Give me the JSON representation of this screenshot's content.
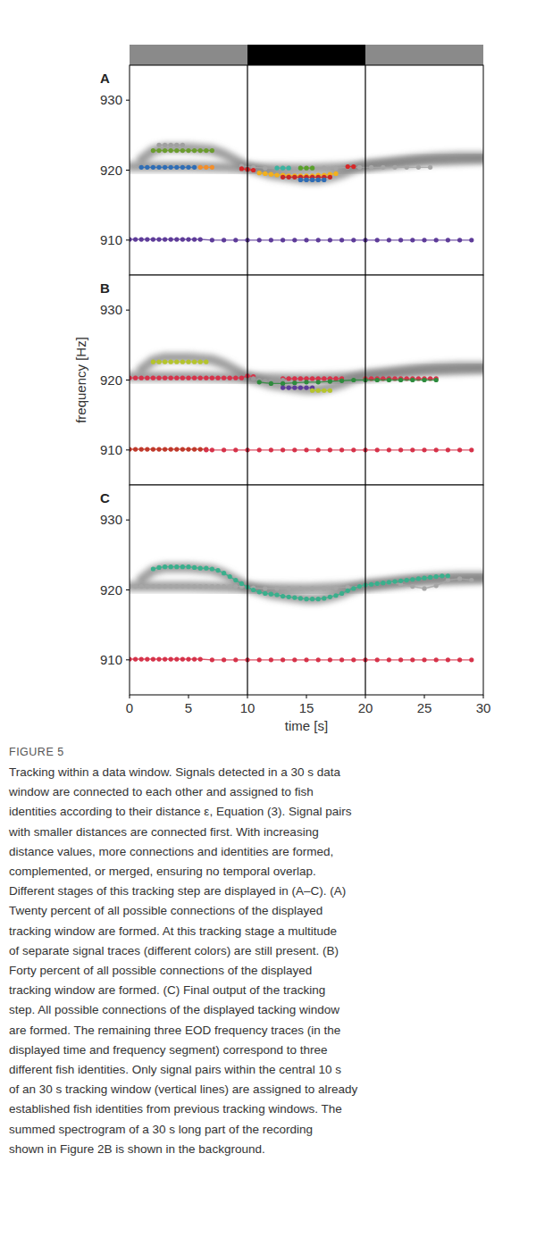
{
  "chart_data": [
    {
      "type": "line",
      "title": "A",
      "marker": "circle",
      "tick_labels": "y",
      "xlim": [
        0,
        30
      ],
      "ylim": [
        905,
        935
      ],
      "yticks": [
        910,
        920,
        930
      ],
      "vlines": [
        10,
        20
      ],
      "series": [
        {
          "color": "#5e3c99",
          "x": [
            0,
            0.5,
            1,
            1.5,
            2,
            2.5,
            3,
            3.5,
            4,
            4.5,
            5,
            5.5,
            6,
            7,
            8,
            9,
            10,
            11,
            12,
            13,
            14,
            15,
            16,
            17,
            18,
            19,
            20,
            21,
            22,
            23,
            24,
            25,
            26,
            27,
            28,
            29
          ],
          "values": [
            910.1,
            910.1,
            910.1,
            910.1,
            910.1,
            910.1,
            910.1,
            910.1,
            910.1,
            910.1,
            910.1,
            910.1,
            910.1,
            910,
            910,
            910,
            910,
            910,
            910,
            910,
            910,
            910,
            910,
            910,
            910,
            910,
            910,
            910,
            910,
            910,
            910,
            910,
            910,
            910,
            910,
            910
          ]
        },
        {
          "color": "#2f6db5",
          "x": [
            1,
            1.5,
            2,
            2.5,
            3,
            3.5,
            4,
            4.5,
            5,
            5.5
          ],
          "values": [
            920.4,
            920.4,
            920.4,
            920.4,
            920.4,
            920.4,
            920.4,
            920.4,
            920.4,
            920.4
          ]
        },
        {
          "color": "#f28e2b",
          "x": [
            6,
            6.5,
            7
          ],
          "values": [
            920.4,
            920.4,
            920.4
          ]
        },
        {
          "color": "#6b9c2f",
          "x": [
            2,
            2.5,
            3,
            3.5,
            4,
            4.5,
            5,
            5.5,
            6,
            6.5,
            7
          ],
          "values": [
            922.8,
            922.8,
            922.8,
            922.8,
            922.8,
            922.8,
            922.8,
            922.8,
            922.8,
            922.8,
            922.8
          ]
        },
        {
          "color": "#a0a0a0",
          "x": [
            2.5,
            3,
            3.5,
            4,
            4.5
          ],
          "values": [
            923.6,
            923.6,
            923.6,
            923.6,
            923.6
          ]
        },
        {
          "color": "#a6a6a6",
          "x": [
            9.5,
            10.5,
            11.5,
            12.5,
            13.5,
            14.5,
            15.5,
            16.5,
            17.5,
            18.5,
            19.5,
            20.5,
            21.5,
            22.5,
            23.5,
            24.5,
            25.5
          ],
          "values": [
            920.6,
            920.4,
            920.3,
            920.3,
            920.3,
            920.3,
            920.3,
            920.3,
            920.3,
            920.4,
            920.4,
            920.4,
            920.4,
            920.4,
            920.4,
            920.4,
            920.4
          ]
        },
        {
          "color": "#d62728",
          "x": [
            9.5,
            10,
            10.5
          ],
          "values": [
            920.2,
            920.1,
            920
          ]
        },
        {
          "color": "#f2b01e",
          "x": [
            11,
            11.5,
            12,
            12.5,
            13,
            13.5,
            14,
            14.5,
            15,
            15.5,
            16,
            16.5,
            17,
            17.5
          ],
          "values": [
            919.6,
            919.5,
            919.4,
            919.3,
            919.3,
            919.2,
            919.2,
            919.2,
            919.2,
            919.2,
            919.3,
            919.3,
            919.4,
            919.5
          ]
        },
        {
          "color": "#c62828",
          "x": [
            13,
            13.5,
            14,
            14.5,
            15,
            15.5,
            16,
            16.5,
            17
          ],
          "values": [
            919,
            919,
            919,
            919,
            919,
            919,
            919,
            919,
            919
          ]
        },
        {
          "color": "#3cb3a0",
          "x": [
            12.5,
            13,
            13.5
          ],
          "values": [
            920.3,
            920.3,
            920.3
          ]
        },
        {
          "color": "#5aa02c",
          "x": [
            14.5,
            15,
            15.5
          ],
          "values": [
            920.3,
            920.3,
            920.3
          ]
        },
        {
          "color": "#2f6db5",
          "x": [
            14.5,
            15,
            15.5,
            16,
            16.5
          ],
          "values": [
            918.6,
            918.6,
            918.6,
            918.6,
            918.6
          ]
        },
        {
          "color": "#d62728",
          "x": [
            18.5,
            19
          ],
          "values": [
            920.5,
            920.5
          ]
        }
      ]
    },
    {
      "type": "line",
      "title": "B",
      "marker": "circle",
      "tick_labels": "y",
      "ylabel": "frequency [Hz]",
      "xlim": [
        0,
        30
      ],
      "ylim": [
        905,
        935
      ],
      "yticks": [
        910,
        920,
        930
      ],
      "vlines": [
        10,
        20
      ],
      "series": [
        {
          "color": "#b5c42c",
          "x": [
            2,
            2.5,
            3,
            3.5,
            4,
            4.5,
            5,
            5.5,
            6,
            6.5
          ],
          "values": [
            922.6,
            922.6,
            922.6,
            922.6,
            922.6,
            922.6,
            922.6,
            922.6,
            922.6,
            922.6
          ]
        },
        {
          "color": "#d6334a",
          "x": [
            0,
            0.5,
            1,
            1.5,
            2,
            2.5,
            3,
            3.5,
            4,
            4.5,
            5,
            5.5,
            6,
            6.5,
            7,
            7.5,
            8,
            8.5,
            9,
            9.5,
            10,
            10.5,
            11.5,
            13,
            13.5,
            14,
            14.5,
            15,
            15.5,
            16,
            16.5,
            17,
            17.5,
            18,
            19,
            20,
            20.5,
            21,
            21.5,
            22,
            22.5,
            23,
            23.5,
            24,
            24.5,
            25,
            25.5,
            26
          ],
          "values": [
            920.3,
            920.3,
            920.3,
            920.3,
            920.3,
            920.3,
            920.3,
            920.3,
            920.3,
            920.3,
            920.3,
            920.3,
            920.3,
            920.3,
            920.3,
            920.3,
            920.3,
            920.3,
            920.3,
            920.3,
            920.6,
            920.5,
            null,
            920.2,
            920.2,
            920.2,
            920.2,
            920.2,
            920.2,
            920.2,
            920.2,
            920.2,
            920.2,
            920.2,
            null,
            920.2,
            920.2,
            920.2,
            920.2,
            920.2,
            920.2,
            920.2,
            920.2,
            920.2,
            920.2,
            920.2,
            920.2,
            920.2
          ]
        },
        {
          "color": "#9a9a9a",
          "x": [
            10.5,
            11,
            11.5,
            12,
            12.5,
            13
          ],
          "values": [
            920.2,
            920,
            919.9,
            919.9,
            919.9,
            920
          ]
        },
        {
          "color": "#2e8b3d",
          "x": [
            11,
            12,
            13,
            14,
            15,
            16,
            17,
            18,
            19,
            20,
            21,
            22,
            23,
            24,
            25,
            26
          ],
          "values": [
            919.7,
            919.5,
            919.5,
            919.6,
            919.7,
            919.7,
            919.8,
            919.9,
            920,
            920,
            920,
            920,
            920,
            920,
            920,
            920
          ]
        },
        {
          "color": "#5e3c99",
          "x": [
            13,
            13.5,
            14,
            14.5,
            15,
            15.5
          ],
          "values": [
            918.9,
            918.9,
            918.9,
            918.9,
            918.9,
            918.9
          ]
        },
        {
          "color": "#b5c42c",
          "x": [
            15.5,
            16,
            16.5,
            17
          ],
          "values": [
            918.5,
            918.5,
            918.5,
            918.5
          ]
        },
        {
          "color": "#c0392b",
          "x": [
            0,
            0.5,
            1,
            1.5,
            2,
            2.5,
            3,
            3.5,
            4,
            4.5,
            5,
            5.5,
            6,
            6.5
          ],
          "values": [
            910.1,
            910.1,
            910.1,
            910.1,
            910.1,
            910.1,
            910.1,
            910.1,
            910.1,
            910.1,
            910.1,
            910.1,
            910.1,
            910.1
          ]
        },
        {
          "color": "#d6334a",
          "x": [
            6.5,
            7,
            8,
            9,
            10,
            11,
            12,
            13,
            14,
            15,
            16,
            17,
            18,
            19,
            20,
            21,
            22,
            23,
            24,
            25,
            26,
            27,
            28,
            29
          ],
          "values": [
            910,
            910,
            910,
            910,
            910,
            910,
            910,
            910,
            910,
            910,
            910,
            910,
            910,
            910,
            910,
            910,
            910,
            910,
            910,
            910,
            910,
            910,
            910,
            910
          ]
        }
      ]
    },
    {
      "type": "line",
      "title": "C",
      "marker": "circle",
      "xlabel": "time [s]",
      "xlim": [
        0,
        30
      ],
      "ylim": [
        905,
        935
      ],
      "xticks": [
        0,
        5,
        10,
        15,
        20,
        25,
        30
      ],
      "yticks": [
        910,
        920,
        930
      ],
      "vlines": [
        10,
        20
      ],
      "series": [
        {
          "color": "#d6334a",
          "x": [
            0,
            0.5,
            1,
            1.5,
            2,
            2.5,
            3,
            3.5,
            4,
            4.5,
            5,
            5.5,
            6,
            7,
            8,
            9,
            10,
            11,
            12,
            13,
            14,
            15,
            16,
            17,
            18,
            19,
            20,
            21,
            22,
            23,
            24,
            25,
            26,
            27,
            28,
            29
          ],
          "values": [
            910.1,
            910.1,
            910.1,
            910.1,
            910.1,
            910.1,
            910.1,
            910.1,
            910.1,
            910.1,
            910.1,
            910.1,
            910.1,
            910,
            910,
            910,
            910,
            910,
            910,
            910,
            910,
            910,
            910,
            910,
            910,
            910,
            910,
            910,
            910,
            910,
            910,
            910,
            910,
            910,
            910,
            910
          ]
        },
        {
          "color": "#a6a6a6",
          "x": [
            0,
            0.5,
            1,
            1.5,
            2,
            2.5,
            3,
            3.5,
            4,
            4.5,
            5,
            5.5,
            6,
            6.5,
            7,
            7.5,
            8,
            8.5,
            9,
            9.5,
            10.5,
            11.5,
            12.5,
            13.5,
            14.5,
            15.5,
            16.5,
            17.5,
            18.5,
            19.5,
            21,
            22,
            23,
            24,
            25,
            26,
            27,
            28,
            29
          ],
          "values": [
            920.5,
            920.5,
            920.5,
            920.5,
            920.5,
            920.5,
            920.5,
            920.5,
            920.5,
            920.5,
            920.5,
            920.5,
            920.5,
            920.5,
            920.5,
            920.5,
            920.5,
            920.5,
            920.5,
            920.5,
            920.3,
            920.2,
            920.2,
            920.2,
            920.2,
            920.2,
            920.2,
            920.3,
            920.4,
            920.5,
            920.9,
            921.1,
            920.8,
            920.5,
            920.2,
            920.6,
            921.4,
            921.6,
            921.4
          ]
        },
        {
          "color": "#3aaf8c",
          "x": [
            2,
            2.5,
            3,
            3.5,
            4,
            4.5,
            5,
            5.5,
            6,
            6.5,
            7,
            7.5,
            8,
            8.5,
            9,
            9.5,
            10,
            10.5,
            11,
            11.5,
            12,
            12.5,
            13,
            13.5,
            14,
            14.5,
            15,
            15.5,
            16,
            16.5,
            17,
            17.5,
            18,
            18.5,
            19,
            19.5,
            20,
            20.5,
            21,
            21.5,
            22,
            22.5,
            23,
            23.5,
            24,
            24.5,
            25,
            25.5,
            26,
            26.5,
            27
          ],
          "values": [
            923,
            923.2,
            923.3,
            923.3,
            923.3,
            923.3,
            923.3,
            923.2,
            923.1,
            923.1,
            923,
            922.8,
            922.4,
            921.9,
            921.4,
            920.9,
            920.4,
            920,
            919.7,
            919.5,
            919.4,
            919.3,
            919.1,
            919,
            918.9,
            918.8,
            918.7,
            918.7,
            918.7,
            918.8,
            919,
            919.2,
            919.5,
            919.9,
            920.2,
            920.5,
            920.7,
            920.8,
            920.9,
            921,
            921.1,
            921.2,
            921.3,
            921.4,
            921.5,
            921.6,
            921.7,
            921.8,
            921.9,
            922,
            922
          ]
        }
      ]
    }
  ],
  "spectrogram": [
    {
      "x": [
        0,
        5,
        10,
        15,
        20,
        25,
        30
      ],
      "values": [
        920.5,
        920.5,
        920.3,
        920.2,
        920.5,
        921.3,
        921.6
      ]
    },
    {
      "x": [
        1,
        2,
        3,
        5,
        7,
        8,
        9,
        10,
        12,
        14,
        15,
        16,
        17,
        18,
        19,
        20,
        22,
        24,
        26,
        28,
        30
      ],
      "values": [
        921.5,
        922.8,
        923.2,
        923.2,
        922.9,
        922.3,
        921.4,
        920.4,
        919.4,
        918.9,
        918.7,
        918.7,
        919,
        919.5,
        920.2,
        920.7,
        921.1,
        921.5,
        921.8,
        921.9,
        921.9
      ]
    },
    {
      "x": [
        0,
        30
      ],
      "values": [
        910,
        910
      ]
    }
  ],
  "caption": {
    "label": "FIGURE 5",
    "lines": [
      "Tracking within a data window. Signals detected in a 30 s data",
      "window are connected to each other and assigned to fish",
      "identities according to their distance ε, Equation (3). Signal pairs",
      "with smaller distances are connected first. With increasing",
      "distance values, more connections and identities are formed,",
      "complemented, or merged, ensuring no temporal overlap.",
      "Different stages of this tracking step are displayed in (A–C). (A)",
      "Twenty percent of all possible connections of the displayed",
      "tracking window are formed. At this tracking stage a multitude",
      "of separate signal traces (different colors) are still present. (B)",
      "Forty percent of all possible connections of the displayed",
      "tracking window are formed. (C) Final output of the tracking",
      "step. All possible connections of the displayed tacking window",
      "are formed. The remaining three EOD frequency traces (in the",
      "displayed time and frequency segment) correspond to three",
      "different fish identities. Only signal pairs within the central 10 s",
      "of an 30 s tracking window (vertical lines) are assigned to already",
      "established fish identities from previous tracking windows. The",
      "summed spectrogram of a 30 s long part of the recording",
      "shown in Figure 2B is shown in the background."
    ]
  }
}
